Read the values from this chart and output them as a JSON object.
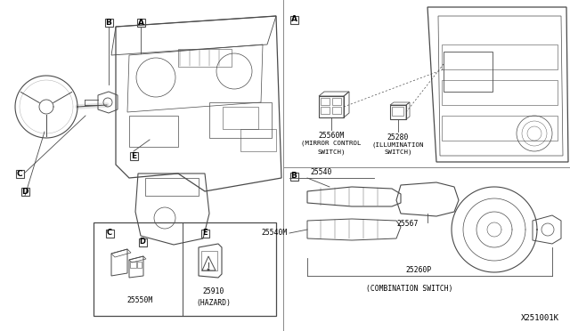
{
  "bg_color": "#ffffff",
  "fig_width": 6.4,
  "fig_height": 3.72,
  "line_color": "#4a4a4a",
  "text_color": "#000000",
  "divider_color": "#888888",
  "labels": {
    "A_left": "A",
    "B_left": "B",
    "C_left": "C",
    "D_left": "D",
    "E_left": "E",
    "A_right": "A",
    "B_right": "B",
    "part_25560M": "25560M",
    "mirror_line1": "(MIRROR CONTROL",
    "mirror_line2": "SWITCH)",
    "part_25280": "25280",
    "illum_line1": "(ILLUMINATION",
    "illum_line2": "SWITCH)",
    "part_25540": "25540",
    "part_25540M": "25540M",
    "part_25567": "25567",
    "part_25260P": "25260P",
    "combination": "(COMBINATION SWITCH)",
    "box_C": "C",
    "box_D": "D",
    "box_E": "E",
    "part_25550M": "25550M",
    "part_25910": "25910",
    "hazard": "(HAZARD)",
    "watermark": "X251001K"
  },
  "font_small": 5.5,
  "font_label": 7.0,
  "font_part": 5.8,
  "font_water": 6.5
}
